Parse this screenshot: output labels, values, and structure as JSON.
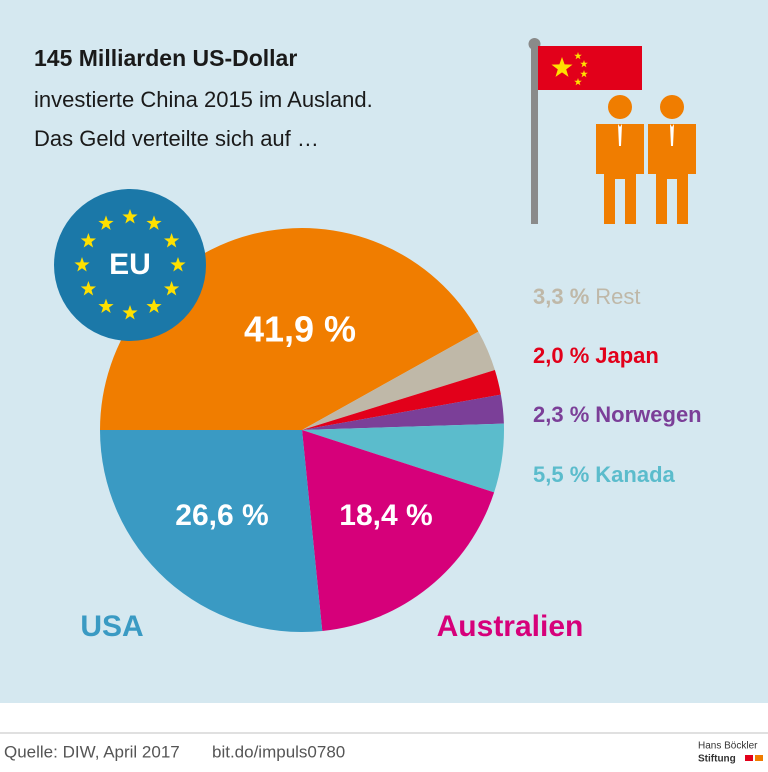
{
  "chart_data": {
    "type": "pie",
    "title": "145 Milliarden US-Dollar",
    "subtitle": [
      "investierte China 2015 im Ausland.",
      "Das Geld verteilte sich auf …"
    ],
    "categories": [
      "EU",
      "Rest",
      "Japan",
      "Norwegen",
      "Kanada",
      "Australien",
      "USA"
    ],
    "values": [
      41.9,
      3.3,
      2.0,
      2.3,
      5.5,
      18.4,
      26.6
    ],
    "value_labels": [
      "41,9 %",
      "3,3 %",
      "2,0 %",
      "2,3 %",
      "5,5 %",
      "18,4 %",
      "26,6 %"
    ],
    "colors": [
      "#f07d00",
      "#bfb8a8",
      "#e2001a",
      "#7b3f98",
      "#5bbccc",
      "#d6007a",
      "#3a9ac3"
    ],
    "source": "Quelle: DIW, April 2017",
    "link": "bit.do/impuls0780",
    "publisher": [
      "Hans Böckler",
      "Stiftung"
    ]
  }
}
